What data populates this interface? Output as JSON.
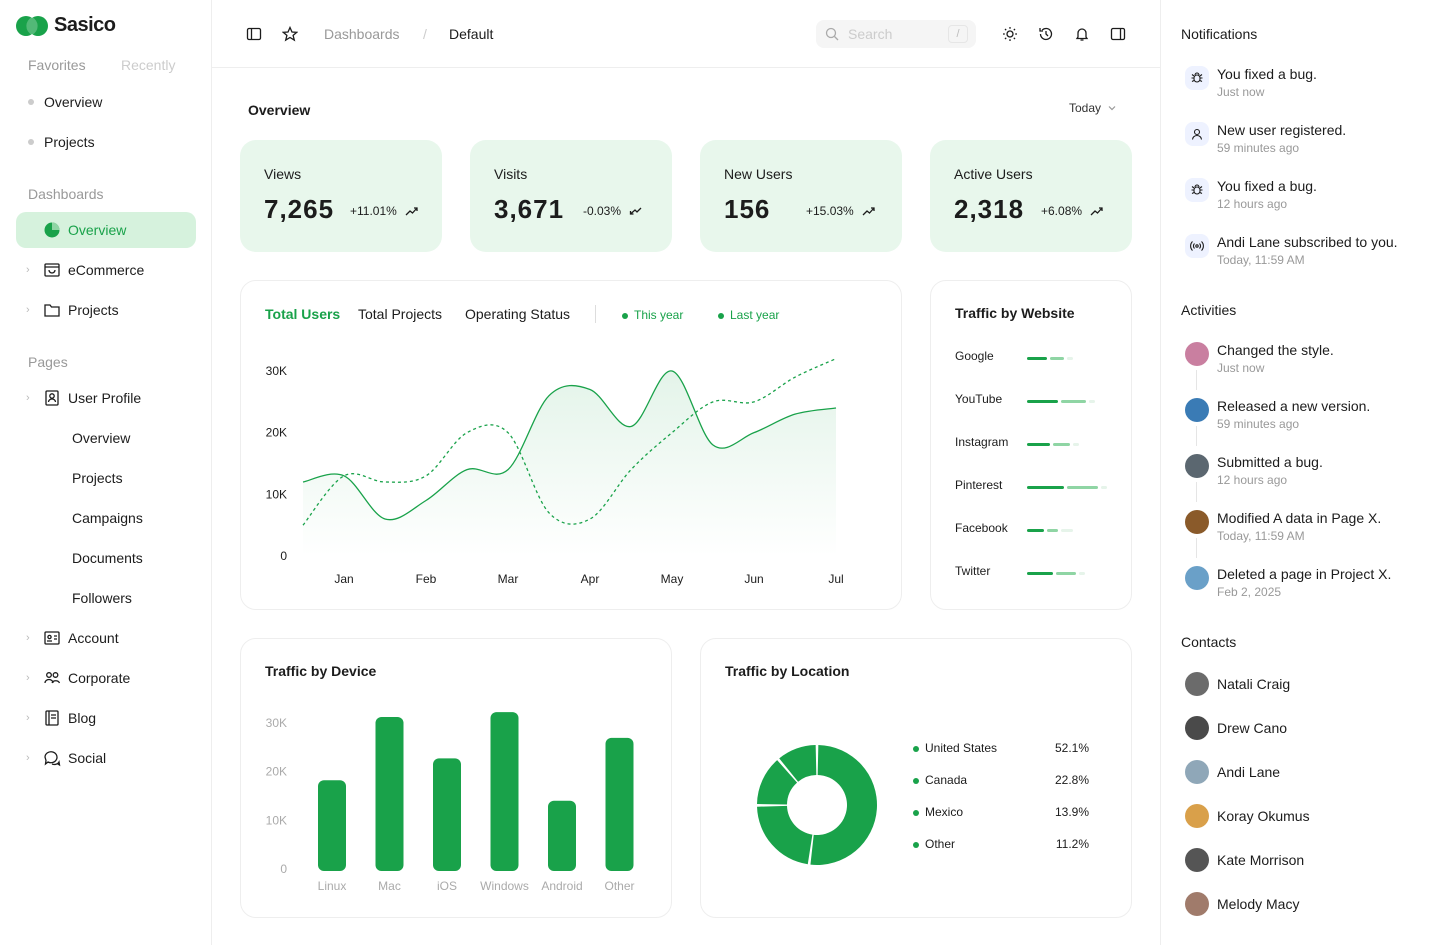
{
  "brand": {
    "name": "Sasico",
    "accent": "#19a24a"
  },
  "sidebar": {
    "tabs": [
      "Favorites",
      "Recently"
    ],
    "favorites": [
      "Overview",
      "Projects"
    ],
    "dashboards_head": "Dashboards",
    "dashboards": [
      {
        "label": "Overview",
        "icon": "pie-chart-icon",
        "active": true
      },
      {
        "label": "eCommerce",
        "icon": "shopping-bag-icon"
      },
      {
        "label": "Projects",
        "icon": "folder-icon"
      }
    ],
    "pages_head": "Pages",
    "user_profile": "User Profile",
    "user_profile_sub": [
      "Overview",
      "Projects",
      "Campaigns",
      "Documents",
      "Followers"
    ],
    "pages": [
      {
        "label": "Account",
        "icon": "id-card-icon"
      },
      {
        "label": "Corporate",
        "icon": "users-icon"
      },
      {
        "label": "Blog",
        "icon": "book-icon"
      },
      {
        "label": "Social",
        "icon": "chat-icon"
      }
    ]
  },
  "header": {
    "breadcrumb": [
      "Dashboards",
      "Default"
    ],
    "separator": "/",
    "search_placeholder": "Search",
    "search_shortcut": "/"
  },
  "overview": {
    "title": "Overview",
    "range": "Today",
    "stats": [
      {
        "label": "Views",
        "value": "7,265",
        "change": "+11.01%",
        "trend": "up"
      },
      {
        "label": "Visits",
        "value": "3,671",
        "change": "-0.03%",
        "trend": "down"
      },
      {
        "label": "New Users",
        "value": "156",
        "change": "+15.03%",
        "trend": "up"
      },
      {
        "label": "Active Users",
        "value": "2,318",
        "change": "+6.08%",
        "trend": "up"
      }
    ]
  },
  "users_chart": {
    "tabs": [
      "Total Users",
      "Total Projects",
      "Operating Status"
    ],
    "legend": [
      "This year",
      "Last year"
    ]
  },
  "traffic_website": {
    "title": "Traffic by Website",
    "sites": [
      {
        "name": "Google",
        "level": 0.25
      },
      {
        "name": "YouTube",
        "level": 0.45
      },
      {
        "name": "Instagram",
        "level": 0.3
      },
      {
        "name": "Pinterest",
        "level": 0.55
      },
      {
        "name": "Facebook",
        "level": 0.2
      },
      {
        "name": "Twitter",
        "level": 0.35
      }
    ]
  },
  "traffic_device": {
    "title": "Traffic by Device"
  },
  "traffic_location": {
    "title": "Traffic by Location",
    "rows": [
      {
        "name": "United States",
        "pct": "52.1%"
      },
      {
        "name": "Canada",
        "pct": "22.8%"
      },
      {
        "name": "Mexico",
        "pct": "13.9%"
      },
      {
        "name": "Other",
        "pct": "11.2%"
      }
    ]
  },
  "chart_data": [
    {
      "type": "line",
      "title": "Total Users",
      "categories": [
        "Jan",
        "Feb",
        "Mar",
        "Apr",
        "May",
        "Jun",
        "Jul"
      ],
      "yticks": [
        "0",
        "10K",
        "20K",
        "30K"
      ],
      "ylim": [
        0,
        30000
      ],
      "series": [
        {
          "name": "This year",
          "x": [
            0.0,
            0.5,
            1.0,
            1.5,
            2.0,
            2.5,
            3.0,
            3.5,
            4.0,
            4.5,
            5.0,
            5.5,
            6.0,
            6.5
          ],
          "values": [
            12000,
            13000,
            6000,
            9000,
            14000,
            14000,
            26000,
            27000,
            21000,
            30000,
            18000,
            20000,
            23000,
            24000
          ]
        },
        {
          "name": "Last year",
          "x": [
            0.0,
            0.5,
            1.0,
            1.5,
            2.0,
            2.5,
            3.0,
            3.5,
            4.0,
            4.5,
            5.0,
            5.5,
            6.0,
            6.5
          ],
          "values": [
            5000,
            13000,
            12000,
            13000,
            20000,
            20000,
            7000,
            6000,
            14000,
            20000,
            25000,
            25000,
            29000,
            32000
          ]
        }
      ]
    },
    {
      "type": "bar",
      "title": "Traffic by Device",
      "categories": [
        "Linux",
        "Mac",
        "iOS",
        "Windows",
        "Android",
        "Other"
      ],
      "values": [
        17000,
        30000,
        21500,
        31000,
        12800,
        25700
      ],
      "yticks": [
        "0",
        "10K",
        "20K",
        "30K"
      ],
      "ylim": [
        0,
        30000
      ]
    },
    {
      "type": "pie",
      "title": "Traffic by Location",
      "categories": [
        "United States",
        "Canada",
        "Mexico",
        "Other"
      ],
      "values": [
        52.1,
        22.8,
        13.9,
        11.2
      ]
    }
  ],
  "right_panel": {
    "notifications_head": "Notifications",
    "notifications": [
      {
        "text": "You fixed a bug.",
        "time": "Just now",
        "icon": "bug-icon"
      },
      {
        "text": "New user registered.",
        "time": "59 minutes ago",
        "icon": "user-icon"
      },
      {
        "text": "You fixed a bug.",
        "time": "12 hours ago",
        "icon": "bug-icon"
      },
      {
        "text": "Andi Lane subscribed to you.",
        "time": "Today, 11:59 AM",
        "icon": "broadcast-icon"
      }
    ],
    "activities_head": "Activities",
    "activities": [
      {
        "text": "Changed the style.",
        "time": "Just now",
        "color": "#c97fa0"
      },
      {
        "text": "Released a new version.",
        "time": "59 minutes ago",
        "color": "#3a7bb5"
      },
      {
        "text": "Submitted a bug.",
        "time": "12 hours ago",
        "color": "#5b6770"
      },
      {
        "text": "Modified A data in Page X.",
        "time": "Today, 11:59 AM",
        "color": "#8a5a2a"
      },
      {
        "text": "Deleted a page in Project X.",
        "time": "Feb 2, 2025",
        "color": "#6aa0c8"
      }
    ],
    "contacts_head": "Contacts",
    "contacts": [
      {
        "name": "Natali Craig",
        "color": "#6b6b6b"
      },
      {
        "name": "Drew Cano",
        "color": "#4a4a4a"
      },
      {
        "name": "Andi Lane",
        "color": "#8fa7b8"
      },
      {
        "name": "Koray Okumus",
        "color": "#d9a04a"
      },
      {
        "name": "Kate Morrison",
        "color": "#555"
      },
      {
        "name": "Melody Macy",
        "color": "#a07b6b"
      }
    ]
  }
}
